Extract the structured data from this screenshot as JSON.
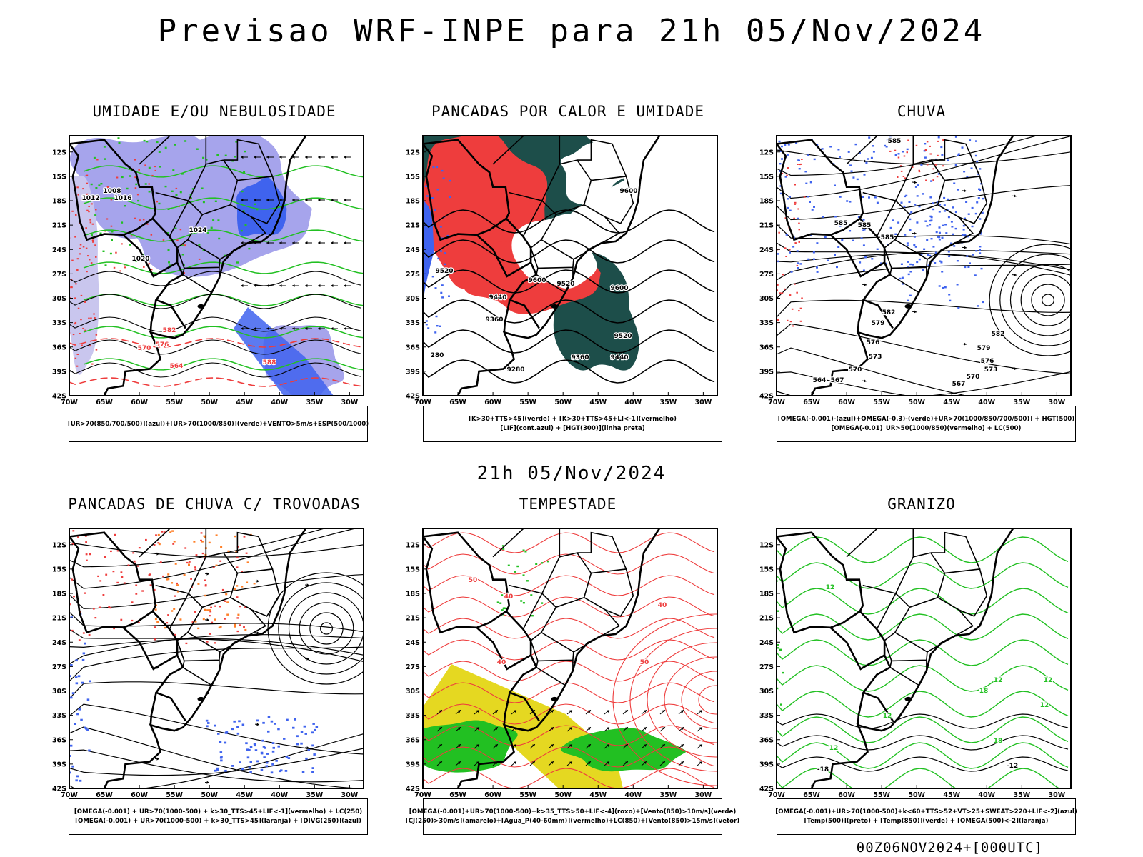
{
  "title": "Previsao WRF-INPE  para 21h 05/Nov/2024",
  "subtitle": "21h 05/Nov/2024",
  "footer": "00Z06NOV2024+[000UTC]",
  "axes": {
    "lat_labels": [
      "12S",
      "15S",
      "18S",
      "21S",
      "24S",
      "27S",
      "30S",
      "33S",
      "36S",
      "39S",
      "42S"
    ],
    "lon_labels": [
      "70W",
      "65W",
      "60W",
      "55W",
      "50W",
      "45W",
      "40W",
      "35W",
      "30W"
    ]
  },
  "panels": [
    {
      "title": "UMIDADE E/OU NEBULOSIDADE",
      "legend": [
        "[UR>70(850/700/500)](azul)+[UR>70(1000/850)](verde)+VENTO>5m/s+ESP(500/1000)"
      ],
      "contour_labels": [
        "1016",
        "1008",
        "1012",
        "1020",
        "1024",
        "570",
        "576",
        "582",
        "588",
        "564"
      ]
    },
    {
      "title": "PANCADAS POR CALOR E UMIDADE",
      "legend": [
        "[K>30+TTS>45](verde) + [K>30+TTS>45+LI<-1](vermelho)",
        "[LIF](cont.azul) + [HGT(300)](linha preta)"
      ],
      "contour_labels": [
        "9600",
        "9520",
        "9440",
        "9360",
        "9280",
        "9520",
        "9600",
        "9440",
        "9600",
        "9520",
        "9360",
        "280"
      ]
    },
    {
      "title": "CHUVA",
      "legend": [
        "[OMEGA(-0.001)-(azul)+OMEGA(-0.3)-(verde)+UR>70(1000/850/700/500)] + HGT(500)",
        "[OMEGA(-0.01)_UR>50(1000/850)(vermelho) + LC(500)"
      ],
      "contour_labels": [
        "585",
        "585",
        "585",
        "585",
        "582",
        "579",
        "576",
        "573",
        "570",
        "567",
        "564",
        "582",
        "579",
        "576",
        "573",
        "570",
        "567"
      ]
    },
    {
      "title": "PANCADAS DE CHUVA C/ TROVOADAS",
      "legend": [
        "[OMEGA(-0.001) + UR>70(1000-500) + k>30_TTS>45+LIF<-1](vermelho) + LC(250)",
        "[OMEGA(-0.001) + UR>70(1000-500) + k>30_TTS>45](laranja) + [DIVG(250)](azul)"
      ],
      "contour_labels": []
    },
    {
      "title": "TEMPESTADE",
      "legend": [
        "[OMEGA(-0.001)+UR>70(1000-500)+k>35_TTS>50+LIF<-4](roxo)+[Vento(850)>10m/s](verde)",
        "[CJ(250)>30m/s](amarelo)+[Agua_P(40-60mm)](vermelho)+LC(850)+[Vento(850)>15m/s](vetor)"
      ],
      "contour_labels": [
        "50",
        "40",
        "40",
        "50",
        "40"
      ]
    },
    {
      "title": "GRANIZO",
      "legend": [
        "[OMEGA(-0.001)+UR>70(1000-500)+k<60+TTS>52+VT>25+SWEAT>220+LIF<-2](azul)",
        "[Temp(500)](preto) + [Temp(850)](verde) + [OMEGA(500)<-2](laranja)"
      ],
      "contour_labels": [
        "12",
        "12",
        "12",
        "12",
        "18",
        "12",
        "-18",
        "-12",
        "12",
        "18"
      ]
    }
  ],
  "colors": {
    "blue": "#3f63ee",
    "lightblue": "#a6a4ec",
    "green": "#22c022",
    "red": "#ee3d3d",
    "darkteal": "#1d4e4a",
    "orange": "#ff7f27",
    "yellow": "#e5d821",
    "black": "#000000"
  }
}
